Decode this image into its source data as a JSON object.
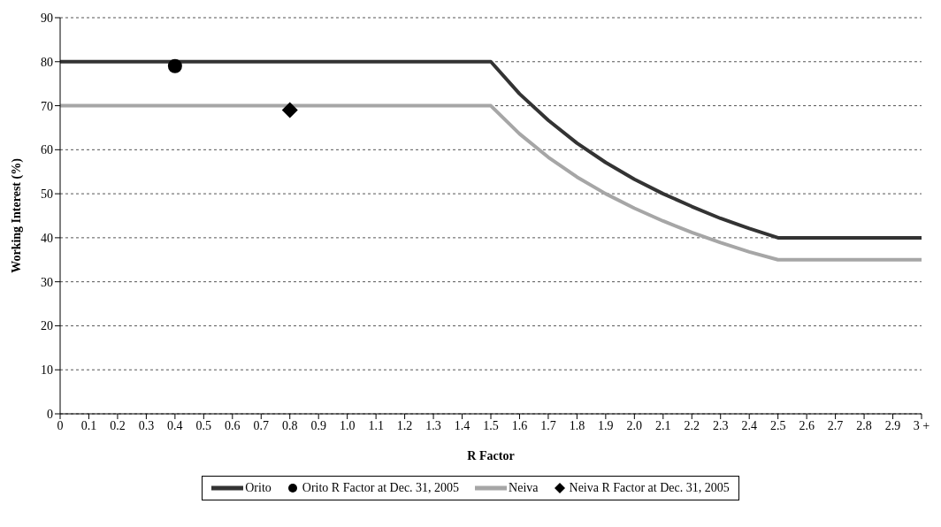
{
  "chart_data": {
    "type": "line",
    "xlabel": "R Factor",
    "ylabel": "Working Interest (%)",
    "categories": [
      "0",
      "0.1",
      "0.2",
      "0.3",
      "0.4",
      "0.5",
      "0.6",
      "0.7",
      "0.8",
      "0.9",
      "1.0",
      "1.1",
      "1.2",
      "1.3",
      "1.4",
      "1.5",
      "1.6",
      "1.7",
      "1.8",
      "1.9",
      "2.0",
      "2.1",
      "2.2",
      "2.3",
      "2.4",
      "2.5",
      "2.6",
      "2.7",
      "2.8",
      "2.9",
      "3 +"
    ],
    "series": [
      {
        "name": "Orito",
        "color": "#333333",
        "values": [
          80,
          80,
          80,
          80,
          80,
          80,
          80,
          80,
          80,
          80,
          80,
          80,
          80,
          80,
          80,
          80,
          72.7,
          66.7,
          61.5,
          57.1,
          53.3,
          50,
          47.1,
          44.4,
          42.1,
          40,
          40,
          40,
          40,
          40,
          40
        ]
      },
      {
        "name": "Orito R Factor at Dec. 31, 2005",
        "type": "scatter",
        "marker": "circle",
        "color": "#000000",
        "x": [
          "0.4"
        ],
        "values": [
          79
        ]
      },
      {
        "name": "Neiva",
        "color": "#a6a6a6",
        "values": [
          70,
          70,
          70,
          70,
          70,
          70,
          70,
          70,
          70,
          70,
          70,
          70,
          70,
          70,
          70,
          70,
          63.6,
          58.3,
          53.8,
          50,
          46.7,
          43.8,
          41.2,
          38.9,
          36.8,
          35,
          35,
          35,
          35,
          35,
          35
        ]
      },
      {
        "name": "Neiva R Factor at Dec. 31, 2005",
        "type": "scatter",
        "marker": "diamond",
        "color": "#000000",
        "x": [
          "0.8"
        ],
        "values": [
          69
        ]
      }
    ],
    "ylim": [
      0,
      90
    ],
    "yticks": [
      0,
      10,
      20,
      30,
      40,
      50,
      60,
      70,
      80,
      90
    ],
    "grid": "y",
    "legend": "bottom",
    "marker": "none",
    "line_style": "solid"
  }
}
